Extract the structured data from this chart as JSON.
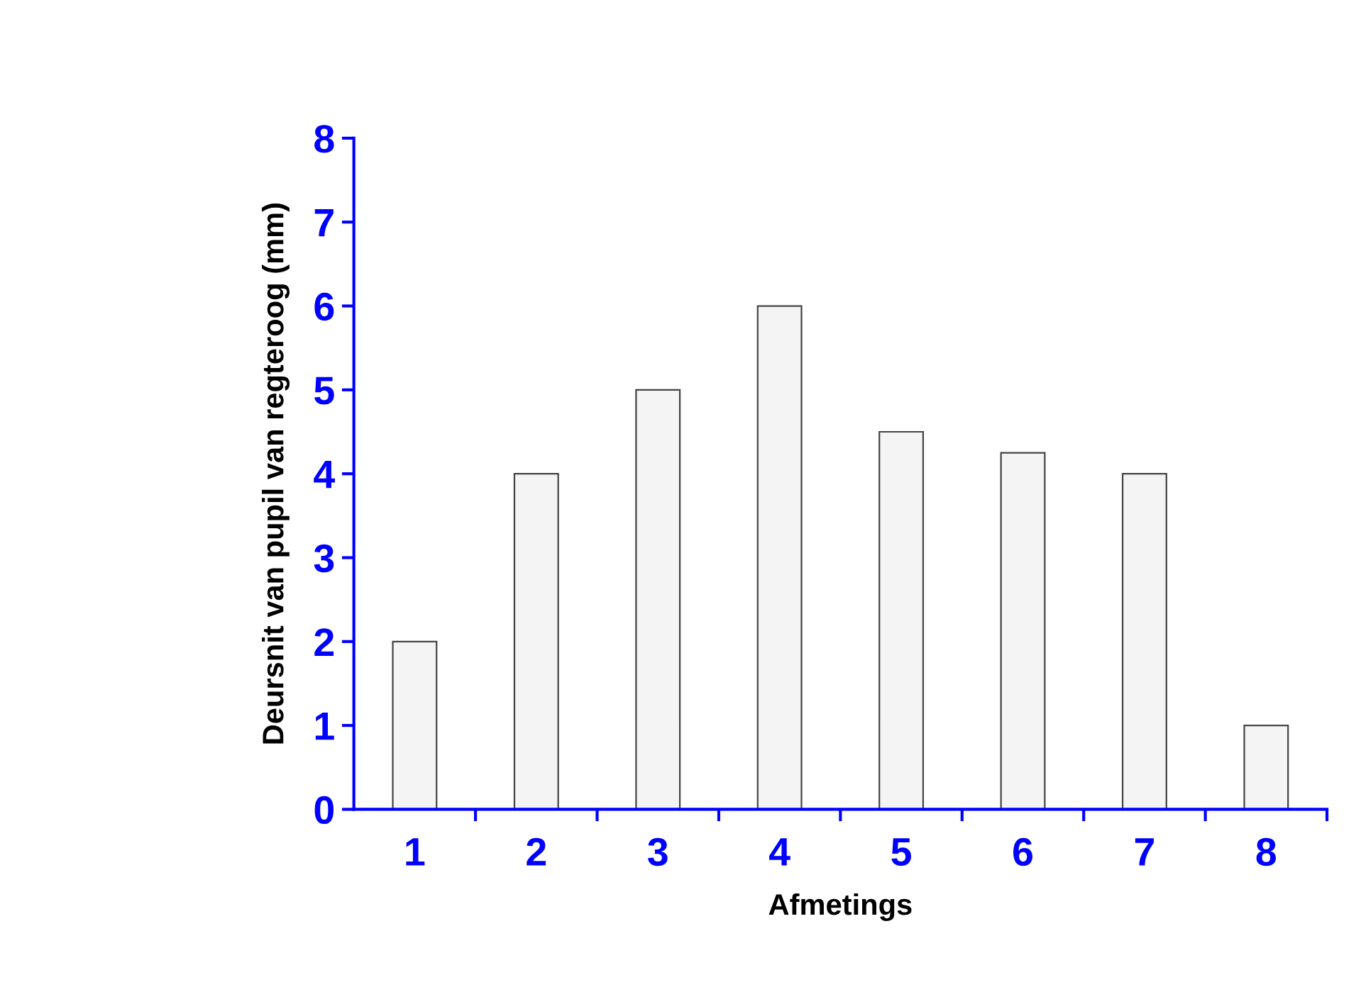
{
  "chart_data": {
    "type": "bar",
    "xlabel": "Afmetings",
    "ylabel": "Deursnit van pupil van regteroog (mm)",
    "categories": [
      "1",
      "2",
      "3",
      "4",
      "5",
      "6",
      "7",
      "8"
    ],
    "values": [
      2,
      4,
      5,
      6,
      4.5,
      4.25,
      4,
      1
    ],
    "color": "#f4f4f4",
    "ylim": [
      0,
      8
    ],
    "yticks": [
      0,
      1,
      2,
      3,
      4,
      5,
      6,
      7,
      8
    ],
    "grid": false
  }
}
